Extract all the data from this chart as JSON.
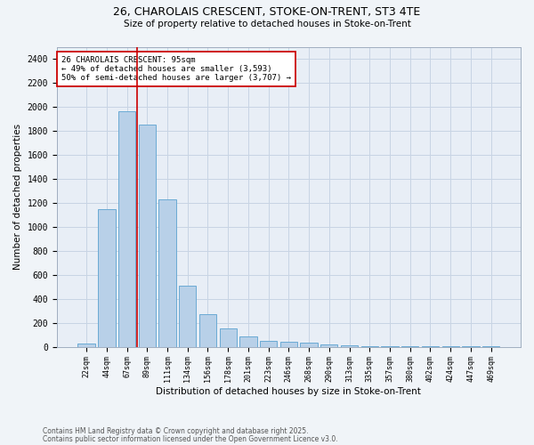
{
  "title_line1": "26, CHAROLAIS CRESCENT, STOKE-ON-TRENT, ST3 4TE",
  "title_line2": "Size of property relative to detached houses in Stoke-on-Trent",
  "xlabel": "Distribution of detached houses by size in Stoke-on-Trent",
  "ylabel": "Number of detached properties",
  "categories": [
    "22sqm",
    "44sqm",
    "67sqm",
    "89sqm",
    "111sqm",
    "134sqm",
    "156sqm",
    "178sqm",
    "201sqm",
    "223sqm",
    "246sqm",
    "268sqm",
    "290sqm",
    "313sqm",
    "335sqm",
    "357sqm",
    "380sqm",
    "402sqm",
    "424sqm",
    "447sqm",
    "469sqm"
  ],
  "values": [
    25,
    1150,
    1960,
    1850,
    1230,
    510,
    270,
    155,
    90,
    50,
    40,
    35,
    20,
    15,
    5,
    5,
    5,
    5,
    5,
    5,
    5
  ],
  "bar_color": "#b8d0e8",
  "bar_edgecolor": "#6aaad4",
  "grid_color": "#c8d4e4",
  "bg_color": "#e8eef6",
  "vline_color": "#cc0000",
  "vline_index": 2.5,
  "annotation_text": "26 CHAROLAIS CRESCENT: 95sqm\n← 49% of detached houses are smaller (3,593)\n50% of semi-detached houses are larger (3,707) →",
  "annotation_box_color": "#cc0000",
  "footer_line1": "Contains HM Land Registry data © Crown copyright and database right 2025.",
  "footer_line2": "Contains public sector information licensed under the Open Government Licence v3.0.",
  "ylim": [
    0,
    2500
  ],
  "yticks": [
    0,
    200,
    400,
    600,
    800,
    1000,
    1200,
    1400,
    1600,
    1800,
    2000,
    2200,
    2400
  ],
  "fig_bg": "#f0f4f8"
}
